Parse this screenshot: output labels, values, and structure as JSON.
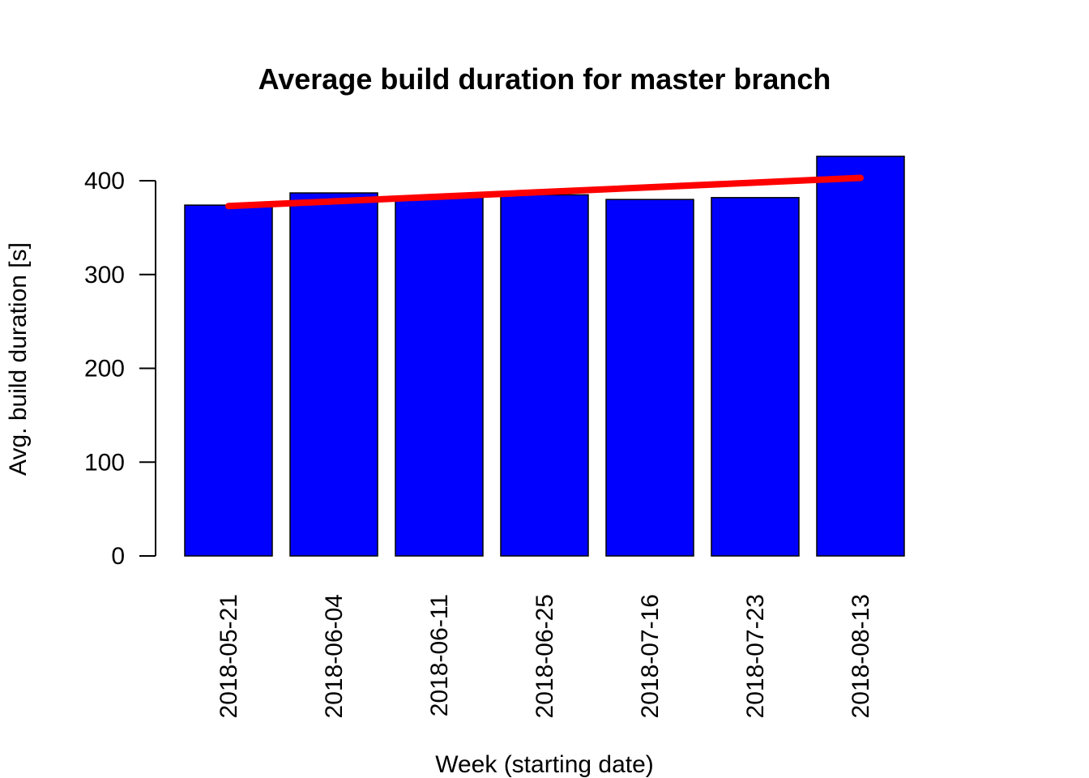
{
  "chart_data": {
    "type": "bar",
    "title": "Average build duration for master branch",
    "xlabel": "Week (starting date)",
    "ylabel": "Avg. build duration [s]",
    "categories": [
      "2018-05-21",
      "2018-06-04",
      "2018-06-11",
      "2018-06-25",
      "2018-07-16",
      "2018-07-23",
      "2018-08-13"
    ],
    "series": [
      {
        "values": [
          374,
          387,
          382,
          385,
          380,
          382,
          426
        ],
        "color": "#0000ff"
      }
    ],
    "trendline": {
      "start": 373,
      "end": 403,
      "color": "#ff0000"
    },
    "ylim": [
      0,
      400
    ],
    "yticks": [
      0,
      100,
      200,
      300,
      400
    ],
    "grid": false,
    "legend": "none"
  }
}
